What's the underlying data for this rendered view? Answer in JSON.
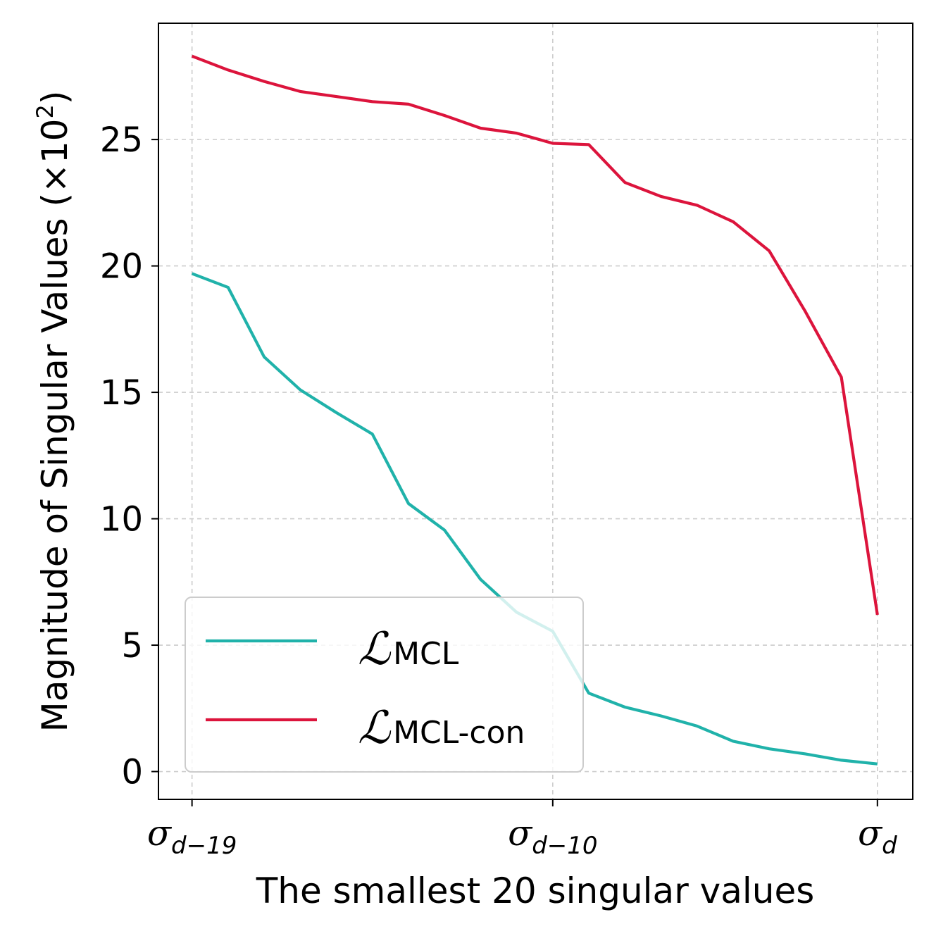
{
  "chart_data": {
    "type": "line",
    "title": "",
    "xlabel": "The smallest 20 singular values",
    "ylabel": "Magnitude of Singular Values (×10",
    "ylabel_exponent": "2",
    "ylabel_close": ")",
    "ylim": [
      -1.1,
      29.6
    ],
    "xlim": [
      -0.93,
      19.98
    ],
    "grid": true,
    "legend_position": "lower-left",
    "x": [
      0,
      1,
      2,
      3,
      4,
      5,
      6,
      7,
      8,
      9,
      10,
      11,
      12,
      13,
      14,
      15,
      16,
      17,
      18,
      19
    ],
    "x_ticks": [
      {
        "value": 0,
        "base": "σ",
        "sub": "d−19"
      },
      {
        "value": 10,
        "base": "σ",
        "sub": "d−10"
      },
      {
        "value": 19,
        "base": "σ",
        "sub": "d"
      }
    ],
    "y_ticks": [
      0,
      5,
      10,
      15,
      20,
      25
    ],
    "series": [
      {
        "name": "L_MCL",
        "legend_script": "ℒ",
        "legend_sub": "MCL",
        "color": "#20b2aa",
        "values": [
          19.7,
          19.15,
          16.4,
          15.1,
          14.2,
          13.35,
          10.6,
          9.55,
          7.6,
          6.3,
          5.55,
          3.1,
          2.55,
          2.2,
          1.8,
          1.2,
          0.9,
          0.7,
          0.45,
          0.3
        ]
      },
      {
        "name": "L_MCL-con",
        "legend_script": "ℒ",
        "legend_sub": "MCL-con",
        "color": "#dc143c",
        "values": [
          28.3,
          27.75,
          27.3,
          26.9,
          26.7,
          26.5,
          26.4,
          25.95,
          25.45,
          25.25,
          24.85,
          24.8,
          23.3,
          22.75,
          22.4,
          21.75,
          20.6,
          18.2,
          15.6,
          6.2
        ]
      }
    ]
  }
}
